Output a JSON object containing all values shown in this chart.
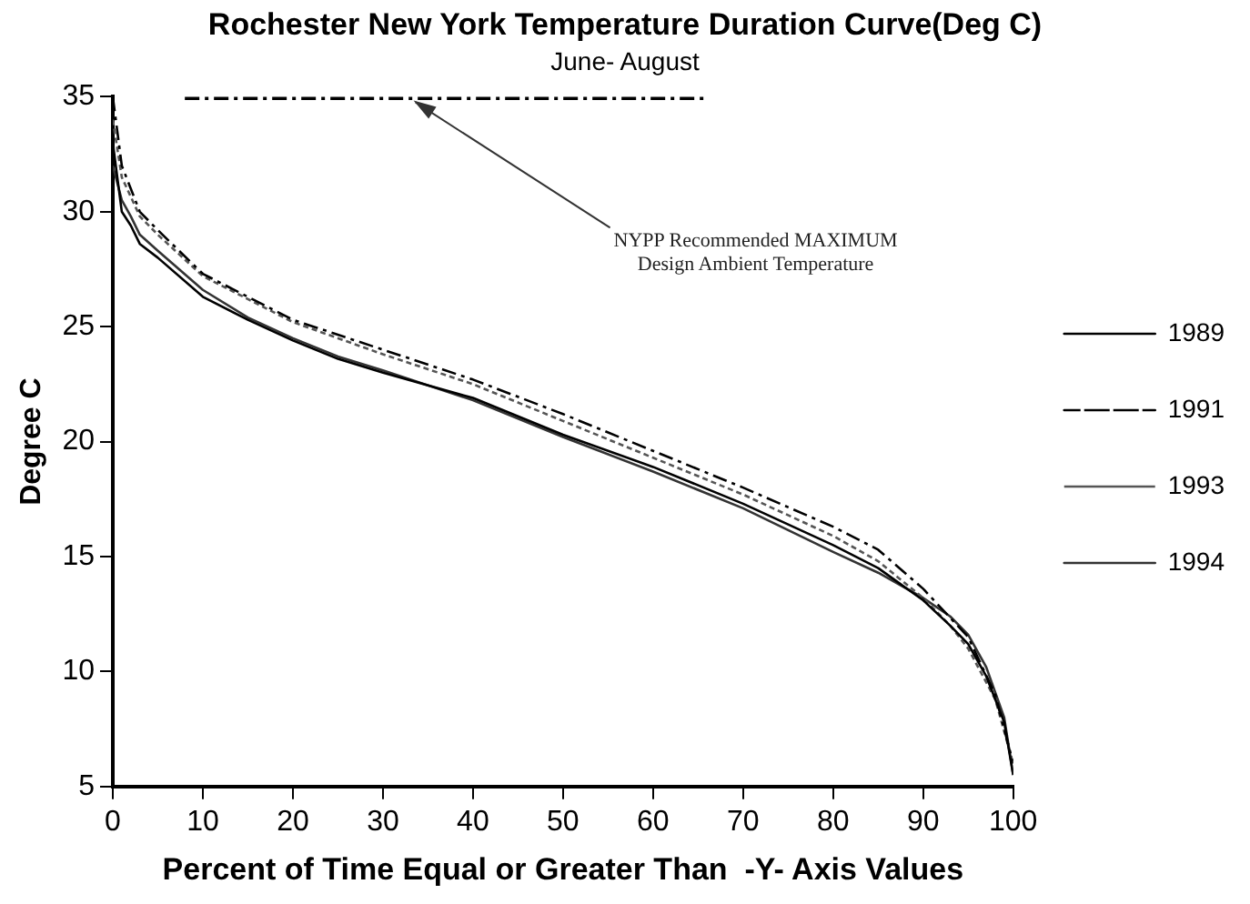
{
  "chart_data": {
    "type": "line",
    "title": "Rochester New York Temperature Duration Curve(Deg C)",
    "subtitle": "June- August",
    "xlabel": "Percent of Time Equal or Greater Than  -Y- Axis Values",
    "ylabel": "Degree C",
    "xlim": [
      0,
      100
    ],
    "xticks": [
      0,
      10,
      20,
      30,
      40,
      50,
      60,
      70,
      80,
      90,
      100
    ],
    "ylim": [
      5,
      35
    ],
    "yticks": [
      5,
      10,
      15,
      20,
      25,
      30,
      35
    ],
    "grid": false,
    "legend": "right",
    "annotations": [
      {
        "text": "NYPP Recommended MAXIMUM Design Ambient Temperature",
        "x": 33,
        "y": 35
      }
    ],
    "series": [
      {
        "name": "1989",
        "color": "#000000",
        "line_style": "solid",
        "x": [
          0,
          1,
          2,
          3,
          5,
          10,
          15,
          20,
          25,
          30,
          40,
          50,
          60,
          70,
          80,
          85,
          90,
          93,
          95,
          97,
          99,
          100
        ],
        "values": [
          33,
          30,
          29.4,
          28.6,
          28,
          26.3,
          25.3,
          24.4,
          23.6,
          23,
          21.9,
          20.3,
          18.9,
          17.3,
          15.5,
          14.5,
          13.1,
          12,
          11.2,
          9.8,
          7.8,
          5.5
        ]
      },
      {
        "name": "1991",
        "color": "#000000",
        "line_style": "dashed",
        "x": [
          0,
          1,
          3,
          5,
          10,
          15,
          20,
          30,
          40,
          50,
          60,
          70,
          80,
          85,
          90,
          95,
          98,
          100
        ],
        "values": [
          35,
          32,
          30,
          29.2,
          27.3,
          26.3,
          25.3,
          24,
          22.7,
          21.2,
          19.6,
          18,
          16.3,
          15.3,
          13.6,
          11.5,
          9,
          6
        ]
      },
      {
        "name": "1993",
        "color": "#555555",
        "line_style": "dotted",
        "x": [
          0,
          1,
          3,
          5,
          10,
          15,
          20,
          30,
          40,
          50,
          60,
          70,
          80,
          85,
          90,
          93,
          95,
          98,
          100
        ],
        "values": [
          34,
          31.5,
          29.8,
          29,
          27.2,
          26.2,
          25.2,
          23.8,
          22.5,
          20.9,
          19.3,
          17.7,
          15.9,
          14.8,
          13.2,
          12,
          11,
          8.8,
          6
        ]
      },
      {
        "name": "1994",
        "color": "#333333",
        "line_style": "solid",
        "x": [
          0,
          1,
          2,
          3,
          5,
          10,
          15,
          20,
          25,
          30,
          40,
          50,
          60,
          70,
          80,
          85,
          90,
          93,
          95,
          97,
          99,
          100
        ],
        "values": [
          32,
          30.5,
          29.8,
          29,
          28.3,
          26.6,
          25.4,
          24.5,
          23.7,
          23.1,
          21.8,
          20.2,
          18.7,
          17.1,
          15.2,
          14.3,
          13.2,
          12.4,
          11.6,
          10.2,
          8,
          5.5
        ]
      },
      {
        "color": "#000000",
        "line_style": "dashed",
        "x": [
          8,
          66
        ],
        "values": [
          35,
          35
        ]
      }
    ]
  }
}
